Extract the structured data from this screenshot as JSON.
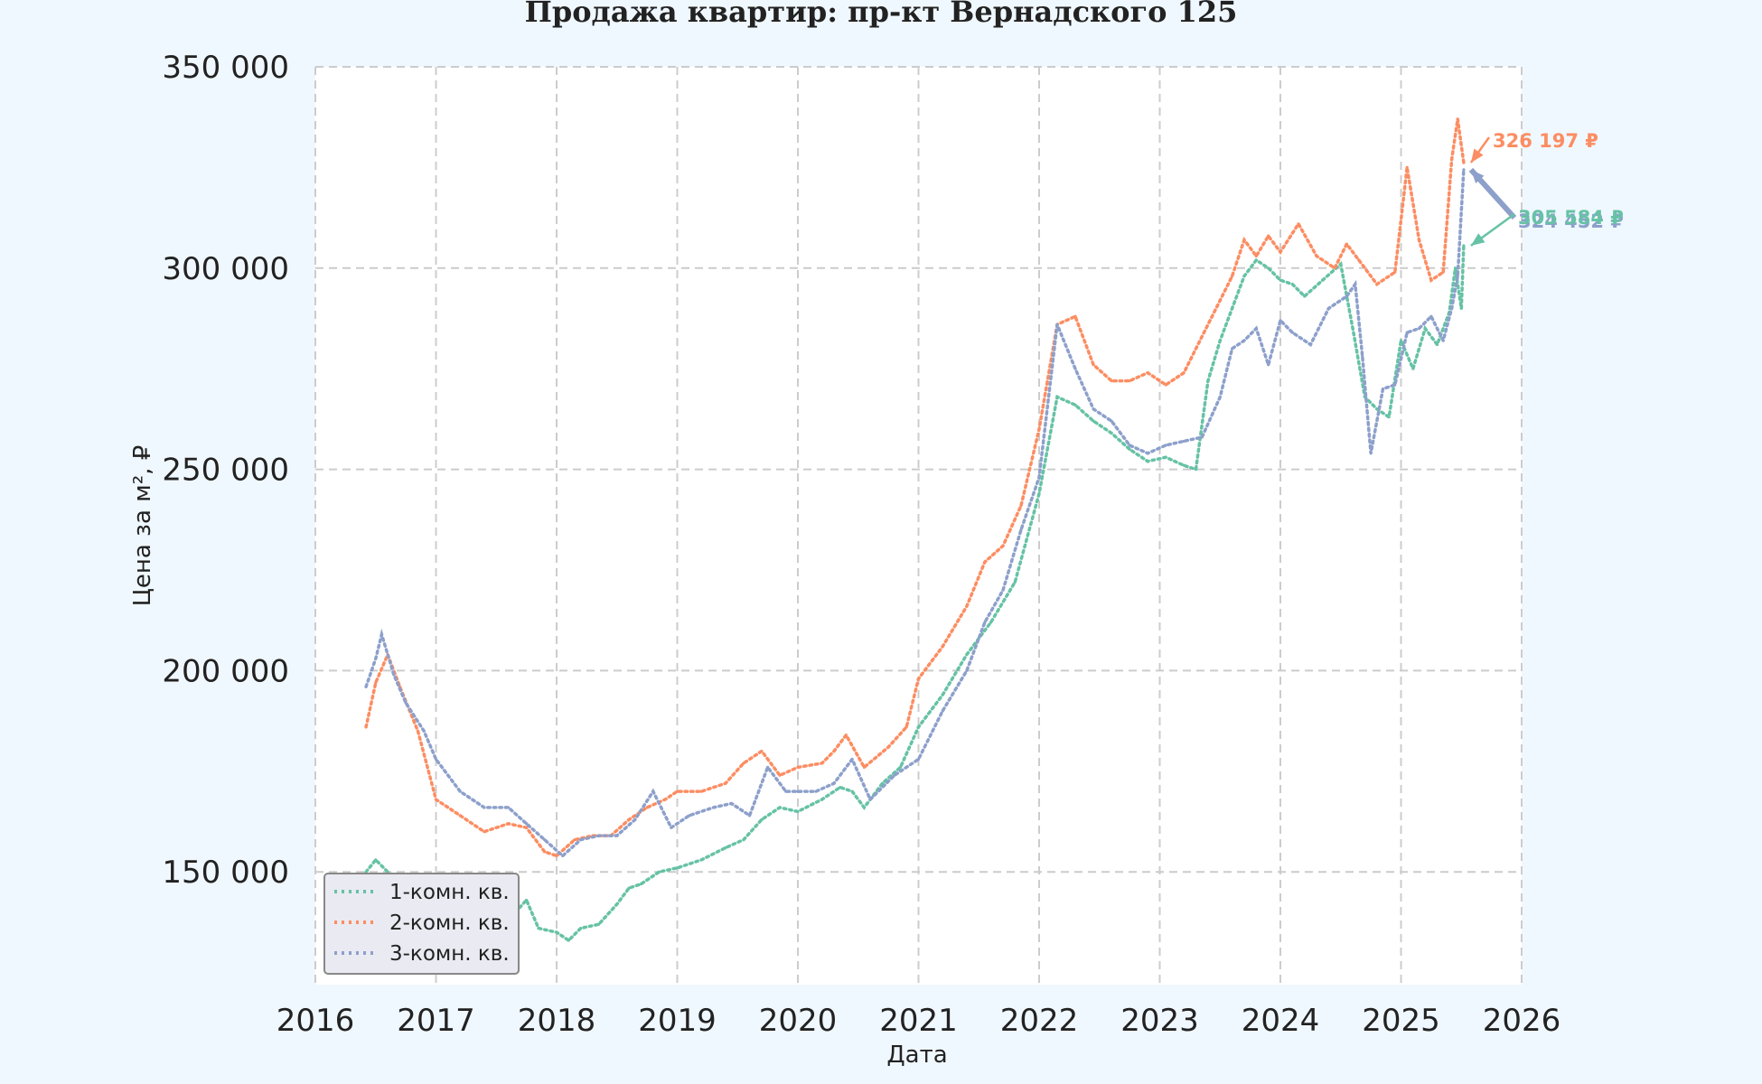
{
  "chart_data": {
    "type": "line",
    "title": "Продажа квартир: пр-кт Вернадского 125",
    "xlabel": "Дата",
    "ylabel": "Цена за м², ₽",
    "xlim": [
      2016,
      2026
    ],
    "ylim": [
      122000,
      350000
    ],
    "x_ticks": [
      2016,
      2017,
      2018,
      2019,
      2020,
      2021,
      2022,
      2023,
      2024,
      2025,
      2026
    ],
    "y_ticks": [
      150000,
      200000,
      250000,
      300000,
      350000
    ],
    "x_tick_labels": [
      "2016",
      "2017",
      "2018",
      "2019",
      "2020",
      "2021",
      "2022",
      "2023",
      "2024",
      "2025",
      "2026"
    ],
    "y_tick_labels": [
      "150 000",
      "200 000",
      "250 000",
      "300 000",
      "350 000"
    ],
    "grid": true,
    "grid_style": "dashed",
    "legend_position": "lower-left",
    "series": [
      {
        "name": "1-комн. кв.",
        "color": "#66c2a5",
        "style": "dotted",
        "x": [
          2016.42,
          2016.5,
          2016.6,
          2016.7,
          2016.8,
          2017.0,
          2017.2,
          2017.4,
          2017.6,
          2017.75,
          2017.85,
          2018.0,
          2018.1,
          2018.2,
          2018.35,
          2018.5,
          2018.6,
          2018.7,
          2018.85,
          2019.0,
          2019.2,
          2019.4,
          2019.55,
          2019.7,
          2019.85,
          2020.0,
          2020.2,
          2020.35,
          2020.45,
          2020.55,
          2020.7,
          2020.85,
          2021.0,
          2021.2,
          2021.4,
          2021.6,
          2021.8,
          2022.0,
          2022.15,
          2022.3,
          2022.45,
          2022.6,
          2022.75,
          2022.9,
          2023.05,
          2023.2,
          2023.3,
          2023.4,
          2023.5,
          2023.6,
          2023.7,
          2023.8,
          2023.9,
          2024.0,
          2024.1,
          2024.2,
          2024.35,
          2024.5,
          2024.6,
          2024.7,
          2024.8,
          2024.9,
          2025.0,
          2025.1,
          2025.2,
          2025.3,
          2025.4,
          2025.45,
          2025.5,
          2025.52
        ],
        "y": [
          150000,
          153000,
          150000,
          146000,
          143000,
          141000,
          140000,
          141000,
          138000,
          143000,
          136000,
          135000,
          133000,
          136000,
          137000,
          142000,
          146000,
          147000,
          150000,
          151000,
          153000,
          156000,
          158000,
          163000,
          166000,
          165000,
          168000,
          171000,
          170000,
          166000,
          172000,
          176000,
          186000,
          194000,
          204000,
          212000,
          222000,
          244000,
          268000,
          266000,
          262000,
          259000,
          255000,
          252000,
          253000,
          251000,
          250000,
          272000,
          282000,
          290000,
          298000,
          302000,
          300000,
          297000,
          296000,
          293000,
          297000,
          301000,
          285000,
          268000,
          265000,
          263000,
          282000,
          275000,
          285000,
          281000,
          289000,
          300000,
          290000,
          305584
        ]
      },
      {
        "name": "2-комн. кв.",
        "color": "#fc8d62",
        "style": "dotted",
        "x": [
          2016.42,
          2016.5,
          2016.6,
          2016.7,
          2016.85,
          2017.0,
          2017.2,
          2017.4,
          2017.6,
          2017.75,
          2017.9,
          2018.0,
          2018.15,
          2018.3,
          2018.45,
          2018.6,
          2018.75,
          2018.9,
          2019.0,
          2019.2,
          2019.4,
          2019.55,
          2019.7,
          2019.85,
          2020.0,
          2020.2,
          2020.3,
          2020.4,
          2020.55,
          2020.75,
          2020.9,
          2021.0,
          2021.2,
          2021.4,
          2021.55,
          2021.7,
          2021.85,
          2022.0,
          2022.15,
          2022.3,
          2022.45,
          2022.6,
          2022.75,
          2022.9,
          2023.05,
          2023.2,
          2023.35,
          2023.5,
          2023.6,
          2023.7,
          2023.8,
          2023.9,
          2024.0,
          2024.15,
          2024.3,
          2024.45,
          2024.55,
          2024.65,
          2024.8,
          2024.95,
          2025.05,
          2025.15,
          2025.25,
          2025.35,
          2025.42,
          2025.47,
          2025.52
        ],
        "y": [
          186000,
          197000,
          204000,
          196000,
          185000,
          168000,
          164000,
          160000,
          162000,
          161000,
          155000,
          154000,
          158000,
          159000,
          159000,
          163000,
          166000,
          168000,
          170000,
          170000,
          172000,
          177000,
          180000,
          174000,
          176000,
          177000,
          180000,
          184000,
          176000,
          181000,
          186000,
          198000,
          206000,
          216000,
          227000,
          231000,
          241000,
          260000,
          286000,
          288000,
          276000,
          272000,
          272000,
          274000,
          271000,
          274000,
          283000,
          292000,
          298000,
          307000,
          303000,
          308000,
          304000,
          311000,
          303000,
          300000,
          306000,
          302000,
          296000,
          299000,
          325000,
          307000,
          297000,
          299000,
          327000,
          337000,
          326197
        ]
      },
      {
        "name": "3-комн. кв.",
        "color": "#8da0cb",
        "style": "dotted",
        "x": [
          2016.42,
          2016.5,
          2016.55,
          2016.65,
          2016.75,
          2016.9,
          2017.0,
          2017.2,
          2017.4,
          2017.6,
          2017.75,
          2017.9,
          2018.05,
          2018.2,
          2018.35,
          2018.5,
          2018.65,
          2018.8,
          2018.95,
          2019.1,
          2019.3,
          2019.45,
          2019.6,
          2019.75,
          2019.9,
          2020.0,
          2020.15,
          2020.3,
          2020.45,
          2020.6,
          2020.8,
          2021.0,
          2021.2,
          2021.4,
          2021.55,
          2021.7,
          2021.85,
          2022.0,
          2022.15,
          2022.3,
          2022.45,
          2022.6,
          2022.75,
          2022.9,
          2023.05,
          2023.2,
          2023.35,
          2023.5,
          2023.6,
          2023.7,
          2023.8,
          2023.9,
          2024.0,
          2024.1,
          2024.25,
          2024.4,
          2024.55,
          2024.62,
          2024.68,
          2024.75,
          2024.85,
          2024.95,
          2025.05,
          2025.15,
          2025.25,
          2025.35,
          2025.42,
          2025.47,
          2025.52
        ],
        "y": [
          196000,
          203000,
          209000,
          199000,
          192000,
          185000,
          178000,
          170000,
          166000,
          166000,
          162000,
          158000,
          154000,
          158000,
          159000,
          159000,
          163000,
          170000,
          161000,
          164000,
          166000,
          167000,
          164000,
          176000,
          170000,
          170000,
          170000,
          172000,
          178000,
          168000,
          174000,
          178000,
          190000,
          200000,
          212000,
          220000,
          235000,
          248000,
          286000,
          275000,
          265000,
          262000,
          256000,
          254000,
          256000,
          257000,
          258000,
          268000,
          280000,
          282000,
          285000,
          276000,
          287000,
          284000,
          281000,
          290000,
          293000,
          296000,
          278000,
          254000,
          270000,
          271000,
          284000,
          285000,
          288000,
          282000,
          290000,
          298000,
          324452
        ]
      }
    ],
    "annotations": [
      {
        "text": "326 197 ₽",
        "series": "2-комн. кв.",
        "color": "#fc8d62"
      },
      {
        "text": "324 452 ₽",
        "series": "3-комн. кв.",
        "color": "#8da0cb"
      },
      {
        "text": "305 584 ₽",
        "series": "1-комн. кв.",
        "color": "#66c2a5"
      }
    ]
  }
}
